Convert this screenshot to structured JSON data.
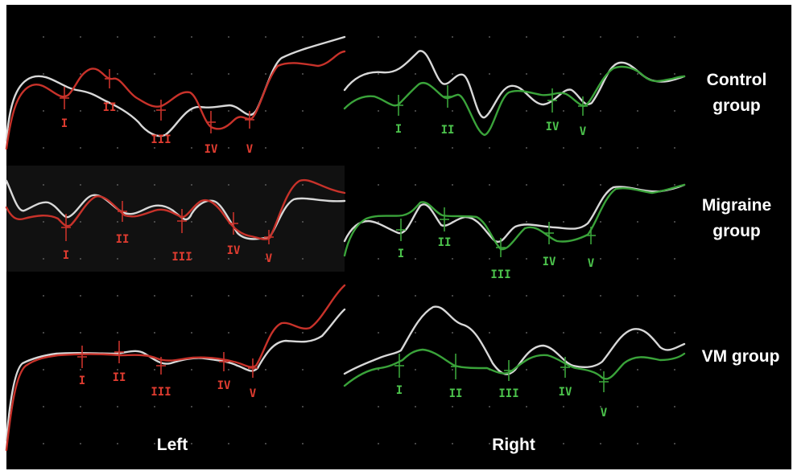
{
  "colors": {
    "background": "#000000",
    "reference_trace": "#d8d8d8",
    "left_trace": "#c8322a",
    "right_trace": "#3aa33a",
    "left_label": "#e03c30",
    "right_label": "#4cc44c"
  },
  "side_labels": {
    "left": "Left",
    "right": "Right"
  },
  "groups": [
    {
      "label_line1": "Control",
      "label_line2": "group"
    },
    {
      "label_line1": "Migraine",
      "label_line2": "group"
    },
    {
      "label_line1": "VM group",
      "label_line2": ""
    }
  ],
  "wave_labels": {
    "control_left": [
      "I",
      "II",
      "III",
      "IV",
      "V"
    ],
    "control_right": [
      "I",
      "II",
      "IV",
      "V"
    ],
    "migraine_left": [
      "I",
      "II",
      "III",
      "IV",
      "V"
    ],
    "migraine_right": [
      "I",
      "II",
      "III",
      "IV",
      "V"
    ],
    "vm_left": [
      "I",
      "II",
      "III",
      "IV",
      "V"
    ],
    "vm_right": [
      "I",
      "II",
      "III",
      "IV",
      "V"
    ]
  }
}
